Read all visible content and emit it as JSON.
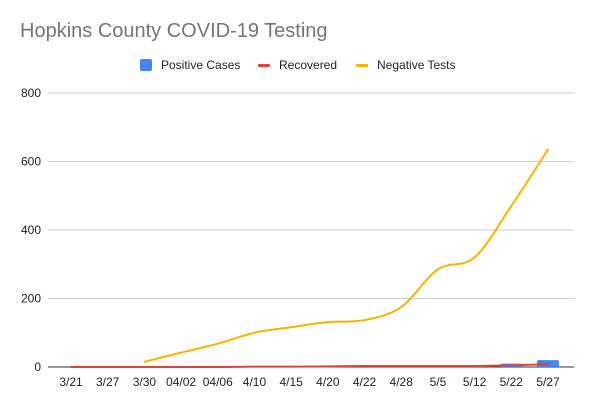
{
  "chart_data": {
    "type": "line",
    "title": "Hopkins County COVID-19 Testing",
    "xlabel": "",
    "ylabel": "",
    "ylim": [
      0,
      800
    ],
    "yticks": [
      0,
      200,
      400,
      600,
      800
    ],
    "grid": true,
    "legend_position": "top-center",
    "categories": [
      "3/21",
      "3/27",
      "3/30",
      "04/02",
      "04/06",
      "4/10",
      "4/15",
      "4/20",
      "4/22",
      "4/28",
      "5/5",
      "5/12",
      "5/22",
      "5/27"
    ],
    "series": [
      {
        "name": "Positive Cases",
        "type": "bar",
        "color": "#4285f4",
        "values": [
          0,
          0,
          0,
          0,
          1,
          1,
          1,
          2,
          2,
          2,
          3,
          4,
          10,
          20
        ]
      },
      {
        "name": "Recovered",
        "type": "line",
        "color": "#db4437",
        "values": [
          0,
          0,
          0,
          0,
          0,
          1,
          1,
          2,
          3,
          3,
          3,
          3,
          5,
          8
        ]
      },
      {
        "name": "Negative Tests",
        "type": "line",
        "color": "#f4b400",
        "values": [
          null,
          null,
          15,
          42,
          68,
          100,
          116,
          131,
          137,
          175,
          285,
          320,
          470,
          635
        ]
      }
    ]
  }
}
